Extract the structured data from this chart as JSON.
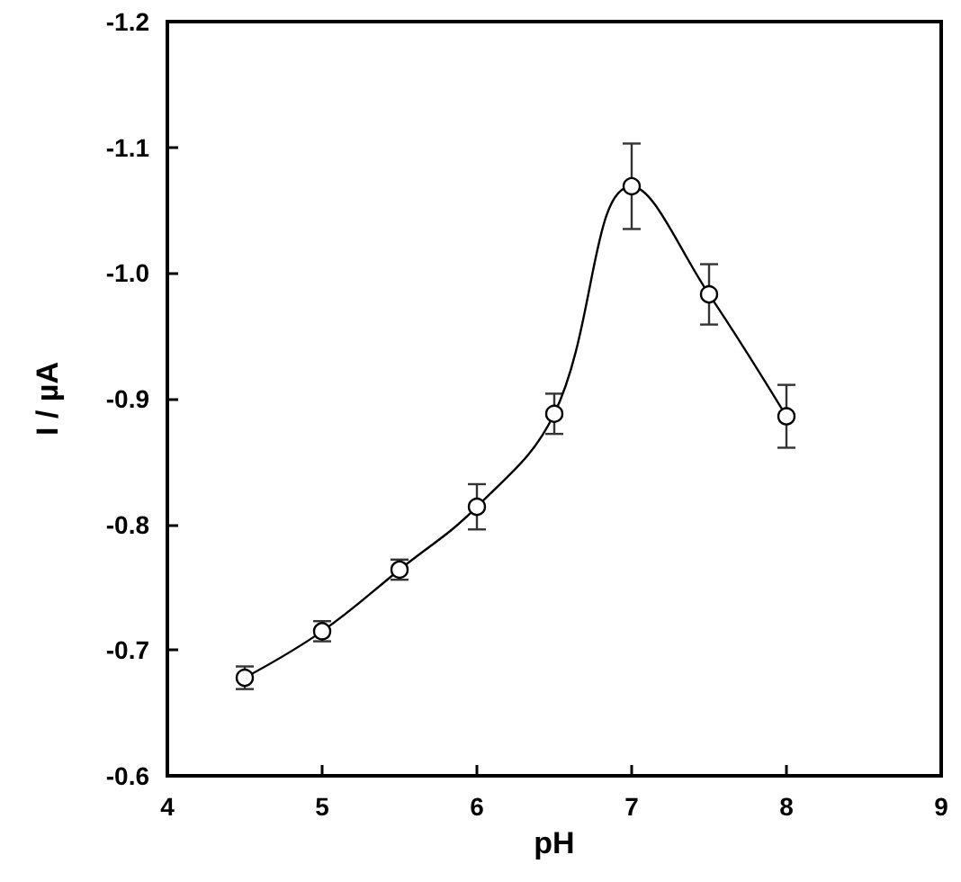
{
  "chart_data": {
    "type": "line",
    "xlabel": "pH",
    "ylabel": "I / µA",
    "x": [
      4.5,
      5,
      5.5,
      6,
      6.5,
      7,
      7.5,
      8
    ],
    "values": [
      -0.678,
      -0.715,
      -0.764,
      -0.814,
      -0.888,
      -1.069,
      -0.983,
      -0.886
    ],
    "errors": [
      0.009,
      0.008,
      0.008,
      0.018,
      0.016,
      0.034,
      0.024,
      0.025
    ],
    "color": "#000000",
    "marker": "circle",
    "line_style": "solid",
    "xlim": [
      4,
      9
    ],
    "xticks": [
      4,
      5,
      6,
      7,
      8,
      9
    ],
    "ylim": [
      -0.6,
      -1.2
    ],
    "yticks": [
      -0.6,
      -0.7,
      -0.8,
      -0.9,
      {
        "value": -1.0,
        "label": "-1.0"
      },
      -1.1,
      -1.2
    ],
    "grid": false,
    "legend": false
  }
}
